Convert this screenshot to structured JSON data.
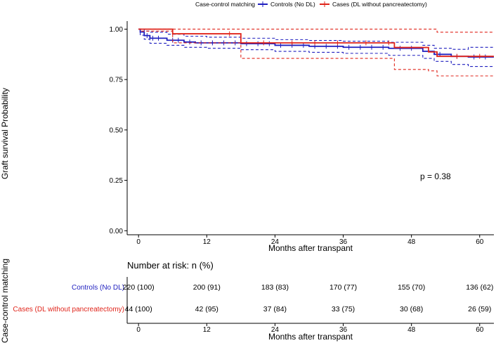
{
  "legend": {
    "title": "Case-control matching",
    "items": [
      {
        "label": "Controls (No DL)",
        "color": "#1f1fbf"
      },
      {
        "label": "Cases (DL without pancreatectomy)",
        "color": "#e0251b"
      }
    ]
  },
  "pvalue": "p = 0.38",
  "risk_table": {
    "title": "Number at risk: n (%)",
    "ylabel": "Case-control matching",
    "rows": [
      {
        "label": "Controls (No DL)",
        "color": "#1f1fbf",
        "values": [
          "220 (100)",
          "200 (91)",
          "183 (83)",
          "170 (77)",
          "155 (70)",
          "136 (62)"
        ]
      },
      {
        "label": "Cases (DL without pancreatectomy)",
        "color": "#e0251b",
        "values": [
          "44 (100)",
          "42 (95)",
          "37 (84)",
          "33 (75)",
          "30 (68)",
          "26 (59)"
        ]
      }
    ],
    "xlabel": "Months after transpant"
  },
  "chart_data": {
    "type": "line",
    "title": "",
    "xlabel": "Months after transpant",
    "ylabel": "Graft survival Probability",
    "xlim": [
      -2,
      62.5
    ],
    "ylim": [
      -0.02,
      1.04
    ],
    "x_ticks": [
      0,
      12,
      24,
      36,
      48,
      60
    ],
    "x_tick_labels": [
      "0",
      "12",
      "24",
      "36",
      "48",
      "60"
    ],
    "y_ticks": [
      0,
      0.25,
      0.5,
      0.75,
      1.0
    ],
    "y_tick_labels": [
      "0.00",
      "0.25",
      "0.50",
      "0.75",
      "1.00"
    ],
    "grid": false,
    "legend_position": "top",
    "series": [
      {
        "name": "Controls (No DL)",
        "color": "#1f1fbf",
        "steps": [
          [
            0,
            1.0
          ],
          [
            0.3,
            0.986
          ],
          [
            1,
            0.968
          ],
          [
            2,
            0.955
          ],
          [
            5,
            0.945
          ],
          [
            8,
            0.936
          ],
          [
            10,
            0.932
          ],
          [
            18,
            0.928
          ],
          [
            24,
            0.92
          ],
          [
            30,
            0.915
          ],
          [
            36,
            0.91
          ],
          [
            44,
            0.905
          ],
          [
            50,
            0.89
          ],
          [
            52,
            0.875
          ],
          [
            55,
            0.865
          ],
          [
            58,
            0.862
          ],
          [
            62.5,
            0.862
          ]
        ],
        "ci_upper": [
          [
            0,
            1.0
          ],
          [
            0.3,
            1.0
          ],
          [
            1,
            0.99
          ],
          [
            2,
            0.985
          ],
          [
            5,
            0.975
          ],
          [
            8,
            0.965
          ],
          [
            12,
            0.96
          ],
          [
            18,
            0.955
          ],
          [
            24,
            0.948
          ],
          [
            30,
            0.944
          ],
          [
            36,
            0.94
          ],
          [
            44,
            0.935
          ],
          [
            50,
            0.92
          ],
          [
            52,
            0.905
          ],
          [
            55,
            0.9
          ],
          [
            58,
            0.91
          ],
          [
            62.5,
            0.91
          ]
        ],
        "ci_lower": [
          [
            0,
            1.0
          ],
          [
            0.3,
            0.97
          ],
          [
            1,
            0.95
          ],
          [
            2,
            0.93
          ],
          [
            5,
            0.92
          ],
          [
            8,
            0.91
          ],
          [
            12,
            0.905
          ],
          [
            18,
            0.898
          ],
          [
            24,
            0.89
          ],
          [
            30,
            0.885
          ],
          [
            36,
            0.88
          ],
          [
            44,
            0.87
          ],
          [
            50,
            0.855
          ],
          [
            52,
            0.84
          ],
          [
            55,
            0.825
          ],
          [
            58,
            0.815
          ],
          [
            62.5,
            0.815
          ]
        ],
        "censor_times": [
          1.5,
          2.5,
          3.5,
          6,
          7,
          9,
          11,
          13,
          15,
          17,
          19,
          21,
          23,
          25,
          27,
          29,
          31,
          33,
          35,
          37,
          39,
          41,
          43,
          46,
          48,
          53,
          56,
          59,
          61
        ]
      },
      {
        "name": "Cases (DL without pancreatectomy)",
        "color": "#e0251b",
        "steps": [
          [
            0,
            1.0
          ],
          [
            6,
            0.977
          ],
          [
            18,
            0.932
          ],
          [
            45,
            0.909
          ],
          [
            51,
            0.887
          ],
          [
            52.5,
            0.865
          ],
          [
            62.5,
            0.865
          ]
        ],
        "ci_upper": [
          [
            0,
            1.0
          ],
          [
            45,
            1.0
          ],
          [
            51,
            1.0
          ],
          [
            52.5,
            0.985
          ],
          [
            62.5,
            0.985
          ]
        ],
        "ci_lower": [
          [
            0,
            1.0
          ],
          [
            0.5,
            0.99
          ],
          [
            6,
            0.932
          ],
          [
            18,
            0.855
          ],
          [
            45,
            0.8
          ],
          [
            51,
            0.793
          ],
          [
            52.5,
            0.768
          ],
          [
            62.5,
            0.768
          ]
        ],
        "censor_times": [
          16,
          22,
          27,
          31,
          35,
          40,
          44,
          56,
          60
        ]
      }
    ],
    "annotations": [
      "p = 0.38"
    ]
  }
}
